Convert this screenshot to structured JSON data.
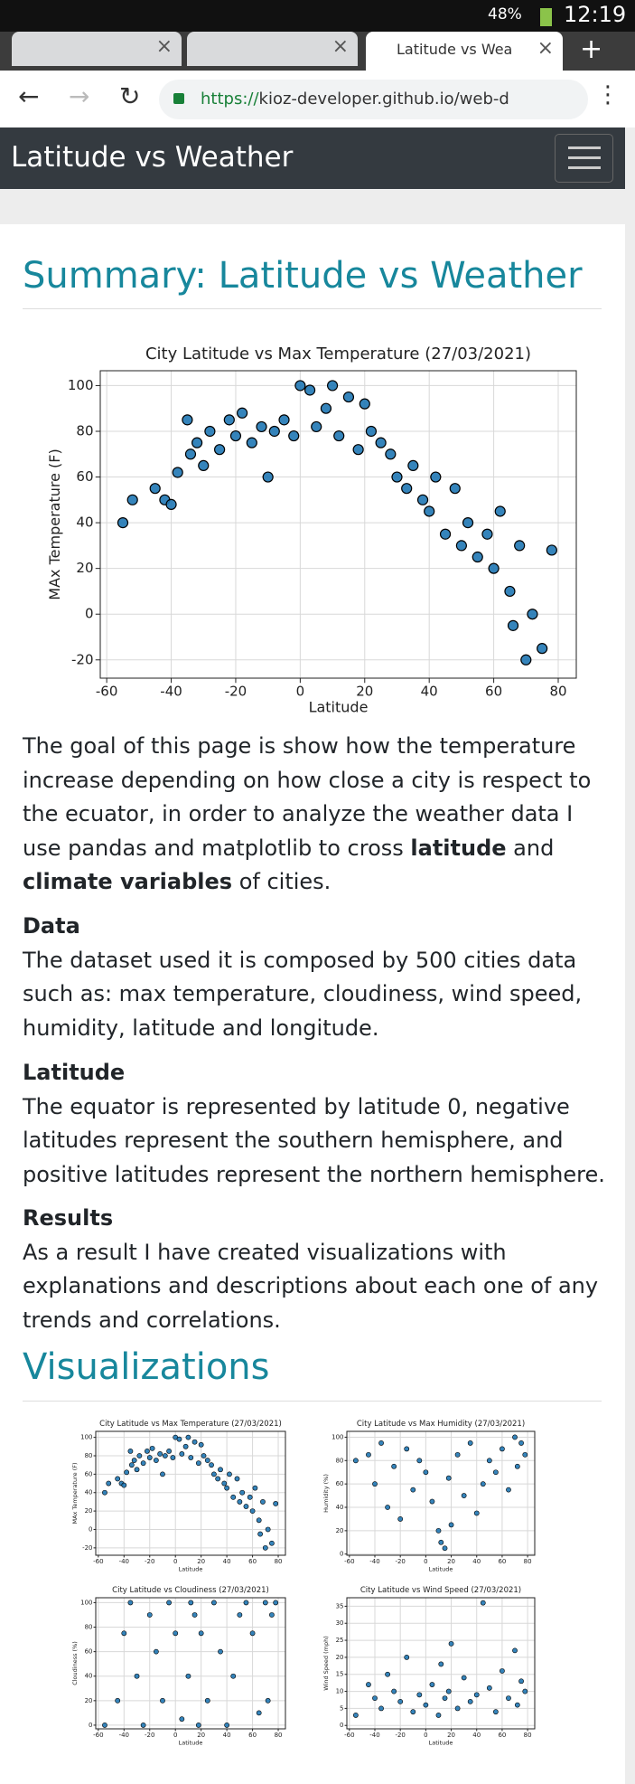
{
  "browser": {
    "time": "12:19",
    "battery": "48%",
    "tab_title": "Latitude vs Wea",
    "url_scheme": "https://",
    "url_host": "kioz-developer.github.io/web-d"
  },
  "navbar": {
    "brand": "Latitude vs Weather"
  },
  "summary": {
    "heading": "Summary: Latitude vs Weather",
    "intro": [
      {
        "text": "The goal of this page is show how the temperature increase depending on how close a city is respect to the ecuator, in order to analyze the weather data I use pandas and matplotlib to cross ",
        "bold": false
      },
      {
        "text": "latitude",
        "bold": true
      },
      {
        "text": " and ",
        "bold": false
      },
      {
        "text": "climate variables",
        "bold": true
      },
      {
        "text": " of cities.",
        "bold": false
      }
    ],
    "sections": [
      {
        "heading": "Data",
        "text": "The dataset used it is composed by 500 cities data such as: max temperature, cloudiness, wind speed, humidity, latitude and longitude."
      },
      {
        "heading": "Latitude",
        "text": "The equator is represented by latitude 0, negative latitudes represent the southern hemisphere, and positive latitudes represent the northern hemisphere."
      },
      {
        "heading": "Results",
        "text": "As a result I have created visualizations with explanations and descriptions about each one of any trends and correlations."
      }
    ]
  },
  "visualizations": {
    "heading": "Visualizations"
  },
  "chart_data": [
    {
      "type": "scatter",
      "title": "City Latitude vs Max Temperature (27/03/2021)",
      "xlabel": "Latitude",
      "ylabel": "MAx Temperature (F)",
      "color": "#1f77b4",
      "grid": true,
      "xlim": [
        -62,
        85.6
      ],
      "ylim": [
        -28,
        106.5
      ],
      "xticks": [
        -60,
        -40,
        -20,
        0,
        20,
        40,
        60,
        80
      ],
      "yticks": [
        -20,
        0,
        20,
        40,
        60,
        80,
        100
      ],
      "x": [
        -55,
        -52,
        -45,
        -42,
        -40,
        -38,
        -35,
        -34,
        -32,
        -30,
        -28,
        -25,
        -22,
        -20,
        -18,
        -15,
        -12,
        -10,
        -8,
        -5,
        -2,
        0,
        3,
        5,
        8,
        10,
        12,
        15,
        18,
        20,
        22,
        25,
        28,
        30,
        33,
        35,
        38,
        40,
        42,
        45,
        48,
        50,
        52,
        55,
        58,
        60,
        62,
        65,
        66,
        68,
        70,
        72,
        75,
        78
      ],
      "y": [
        40,
        50,
        55,
        50,
        48,
        62,
        85,
        70,
        75,
        65,
        80,
        72,
        85,
        78,
        88,
        75,
        82,
        60,
        80,
        85,
        78,
        100,
        98,
        82,
        90,
        100,
        78,
        95,
        72,
        92,
        80,
        75,
        70,
        60,
        55,
        65,
        50,
        45,
        60,
        35,
        55,
        30,
        40,
        25,
        35,
        20,
        45,
        10,
        -5,
        30,
        -20,
        0,
        -15,
        28
      ]
    },
    {
      "type": "scatter",
      "title": "City Latitude vs Max Temperature (27/03/2021)",
      "xlabel": "Latitude",
      "ylabel": "MAx Temperature (F)",
      "color": "#1f77b4",
      "grid": true,
      "xlim": [
        -62,
        85.6
      ],
      "ylim": [
        -28,
        106.5
      ],
      "xticks": [
        -60,
        -40,
        -20,
        0,
        20,
        40,
        60,
        80
      ],
      "yticks": [
        -20,
        0,
        20,
        40,
        60,
        80,
        100
      ],
      "x": [
        -55,
        -52,
        -45,
        -42,
        -40,
        -38,
        -35,
        -34,
        -32,
        -30,
        -28,
        -25,
        -22,
        -20,
        -18,
        -15,
        -12,
        -10,
        -8,
        -5,
        -2,
        0,
        3,
        5,
        8,
        10,
        12,
        15,
        18,
        20,
        22,
        25,
        28,
        30,
        33,
        35,
        38,
        40,
        42,
        45,
        48,
        50,
        52,
        55,
        58,
        60,
        62,
        65,
        66,
        68,
        70,
        72,
        75,
        78
      ],
      "y": [
        40,
        50,
        55,
        50,
        48,
        62,
        85,
        70,
        75,
        65,
        80,
        72,
        85,
        78,
        88,
        75,
        82,
        60,
        80,
        85,
        78,
        100,
        98,
        82,
        90,
        100,
        78,
        95,
        72,
        92,
        80,
        75,
        70,
        60,
        55,
        65,
        50,
        45,
        60,
        35,
        55,
        30,
        40,
        25,
        35,
        20,
        45,
        10,
        -5,
        30,
        -20,
        0,
        -15,
        28
      ]
    },
    {
      "type": "scatter",
      "title": "City Latitude vs Max Humidity (27/03/2021)",
      "xlabel": "Latitude",
      "ylabel": "Humidity (%)",
      "color": "#1f77b4",
      "grid": true,
      "xlim": [
        -62,
        85.6
      ],
      "ylim": [
        -1,
        105
      ],
      "xticks": [
        -60,
        -40,
        -20,
        0,
        20,
        40,
        60,
        80
      ],
      "yticks": [
        0,
        20,
        40,
        60,
        80,
        100
      ],
      "x": [
        -55,
        -45,
        -40,
        -35,
        -30,
        -25,
        -20,
        -15,
        -10,
        -5,
        0,
        5,
        10,
        12,
        15,
        18,
        20,
        25,
        30,
        35,
        40,
        45,
        50,
        55,
        60,
        65,
        70,
        72,
        75,
        78
      ],
      "y": [
        80,
        85,
        60,
        95,
        40,
        75,
        30,
        90,
        55,
        80,
        70,
        45,
        20,
        10,
        5,
        65,
        25,
        85,
        50,
        95,
        35,
        60,
        80,
        70,
        90,
        55,
        100,
        75,
        95,
        85
      ]
    },
    {
      "type": "scatter",
      "title": "City Latitude vs Cloudiness (27/03/2021)",
      "xlabel": "Latitude",
      "ylabel": "Cloudiness (%)",
      "color": "#1f77b4",
      "grid": true,
      "xlim": [
        -62,
        85.6
      ],
      "ylim": [
        -3,
        104
      ],
      "xticks": [
        -60,
        -40,
        -20,
        0,
        20,
        40,
        60,
        80
      ],
      "yticks": [
        0,
        20,
        40,
        60,
        80,
        100
      ],
      "x": [
        -55,
        -45,
        -40,
        -35,
        -30,
        -25,
        -20,
        -15,
        -10,
        -5,
        0,
        5,
        10,
        12,
        15,
        18,
        20,
        25,
        30,
        35,
        40,
        45,
        50,
        55,
        60,
        65,
        70,
        72,
        75,
        78
      ],
      "y": [
        0,
        20,
        75,
        100,
        40,
        0,
        90,
        60,
        20,
        100,
        75,
        5,
        40,
        100,
        90,
        0,
        75,
        20,
        100,
        60,
        0,
        40,
        90,
        100,
        75,
        10,
        100,
        20,
        90,
        100
      ]
    },
    {
      "type": "scatter",
      "title": "City Latitude vs Wind Speed (27/03/2021)",
      "xlabel": "Latitude",
      "ylabel": "Wind Speed (mph)",
      "color": "#1f77b4",
      "grid": true,
      "xlim": [
        -62,
        85.6
      ],
      "ylim": [
        -1,
        37.5
      ],
      "xticks": [
        -60,
        -40,
        -20,
        0,
        20,
        40,
        60,
        80
      ],
      "yticks": [
        0,
        5,
        10,
        15,
        20,
        25,
        30,
        35
      ],
      "x": [
        -55,
        -45,
        -40,
        -35,
        -30,
        -25,
        -20,
        -15,
        -10,
        -5,
        0,
        5,
        10,
        12,
        15,
        18,
        20,
        25,
        30,
        35,
        40,
        45,
        50,
        55,
        60,
        65,
        70,
        72,
        75,
        78
      ],
      "y": [
        3,
        12,
        8,
        5,
        15,
        10,
        7,
        20,
        4,
        9,
        6,
        12,
        3,
        18,
        8,
        10,
        24,
        5,
        14,
        7,
        9,
        36,
        11,
        4,
        16,
        8,
        22,
        6,
        13,
        10
      ]
    }
  ]
}
